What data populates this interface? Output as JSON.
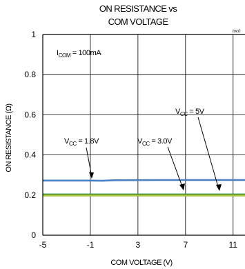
{
  "chart_data": {
    "type": "line",
    "title_line1": "ON RESISTANCE vs",
    "title_line2": "COM VOLTAGE",
    "figure_code": "toc0",
    "xlabel": "COM VOLTAGE (V)",
    "ylabel": "ON RESISTANCE (Ω)",
    "xlim": [
      -5,
      12
    ],
    "ylim": [
      0,
      1
    ],
    "x_ticks": [
      -5,
      -1,
      3,
      7,
      11
    ],
    "x_tick_labels": [
      "-5",
      "-1",
      "3",
      "7",
      "11"
    ],
    "y_ticks": [
      0,
      0.2,
      0.4,
      0.6,
      0.8,
      1
    ],
    "y_tick_labels": [
      "0",
      "0.2",
      "0.4",
      "0.6",
      "0.8",
      "1"
    ],
    "grid": true,
    "condition": {
      "main": "I",
      "sub": "COM",
      "rest": " = 100mA"
    },
    "series": [
      {
        "name": "VCC = 1.8V",
        "color": "#4a7fc1",
        "x": [
          -5,
          -1,
          0,
          1,
          5,
          9,
          12
        ],
        "y": [
          0.272,
          0.272,
          0.271,
          0.274,
          0.275,
          0.275,
          0.275
        ]
      },
      {
        "name": "VCC = 3.0V",
        "color": "#3b8a3b",
        "x": [
          -5,
          -1,
          3,
          7,
          12
        ],
        "y": [
          0.203,
          0.203,
          0.203,
          0.203,
          0.203
        ]
      },
      {
        "name": "VCC = 5V",
        "color": "#a8c23a",
        "x": [
          -5,
          -1,
          3,
          7,
          12
        ],
        "y": [
          0.198,
          0.198,
          0.198,
          0.198,
          0.198
        ]
      }
    ],
    "annotations": [
      {
        "main": "V",
        "sub": "CC",
        "rest": " = 1.8V"
      },
      {
        "main": "V",
        "sub": "CC",
        "rest": " = 3.0V"
      },
      {
        "main": "V",
        "sub": "CC",
        "rest": " = 5V"
      }
    ]
  }
}
